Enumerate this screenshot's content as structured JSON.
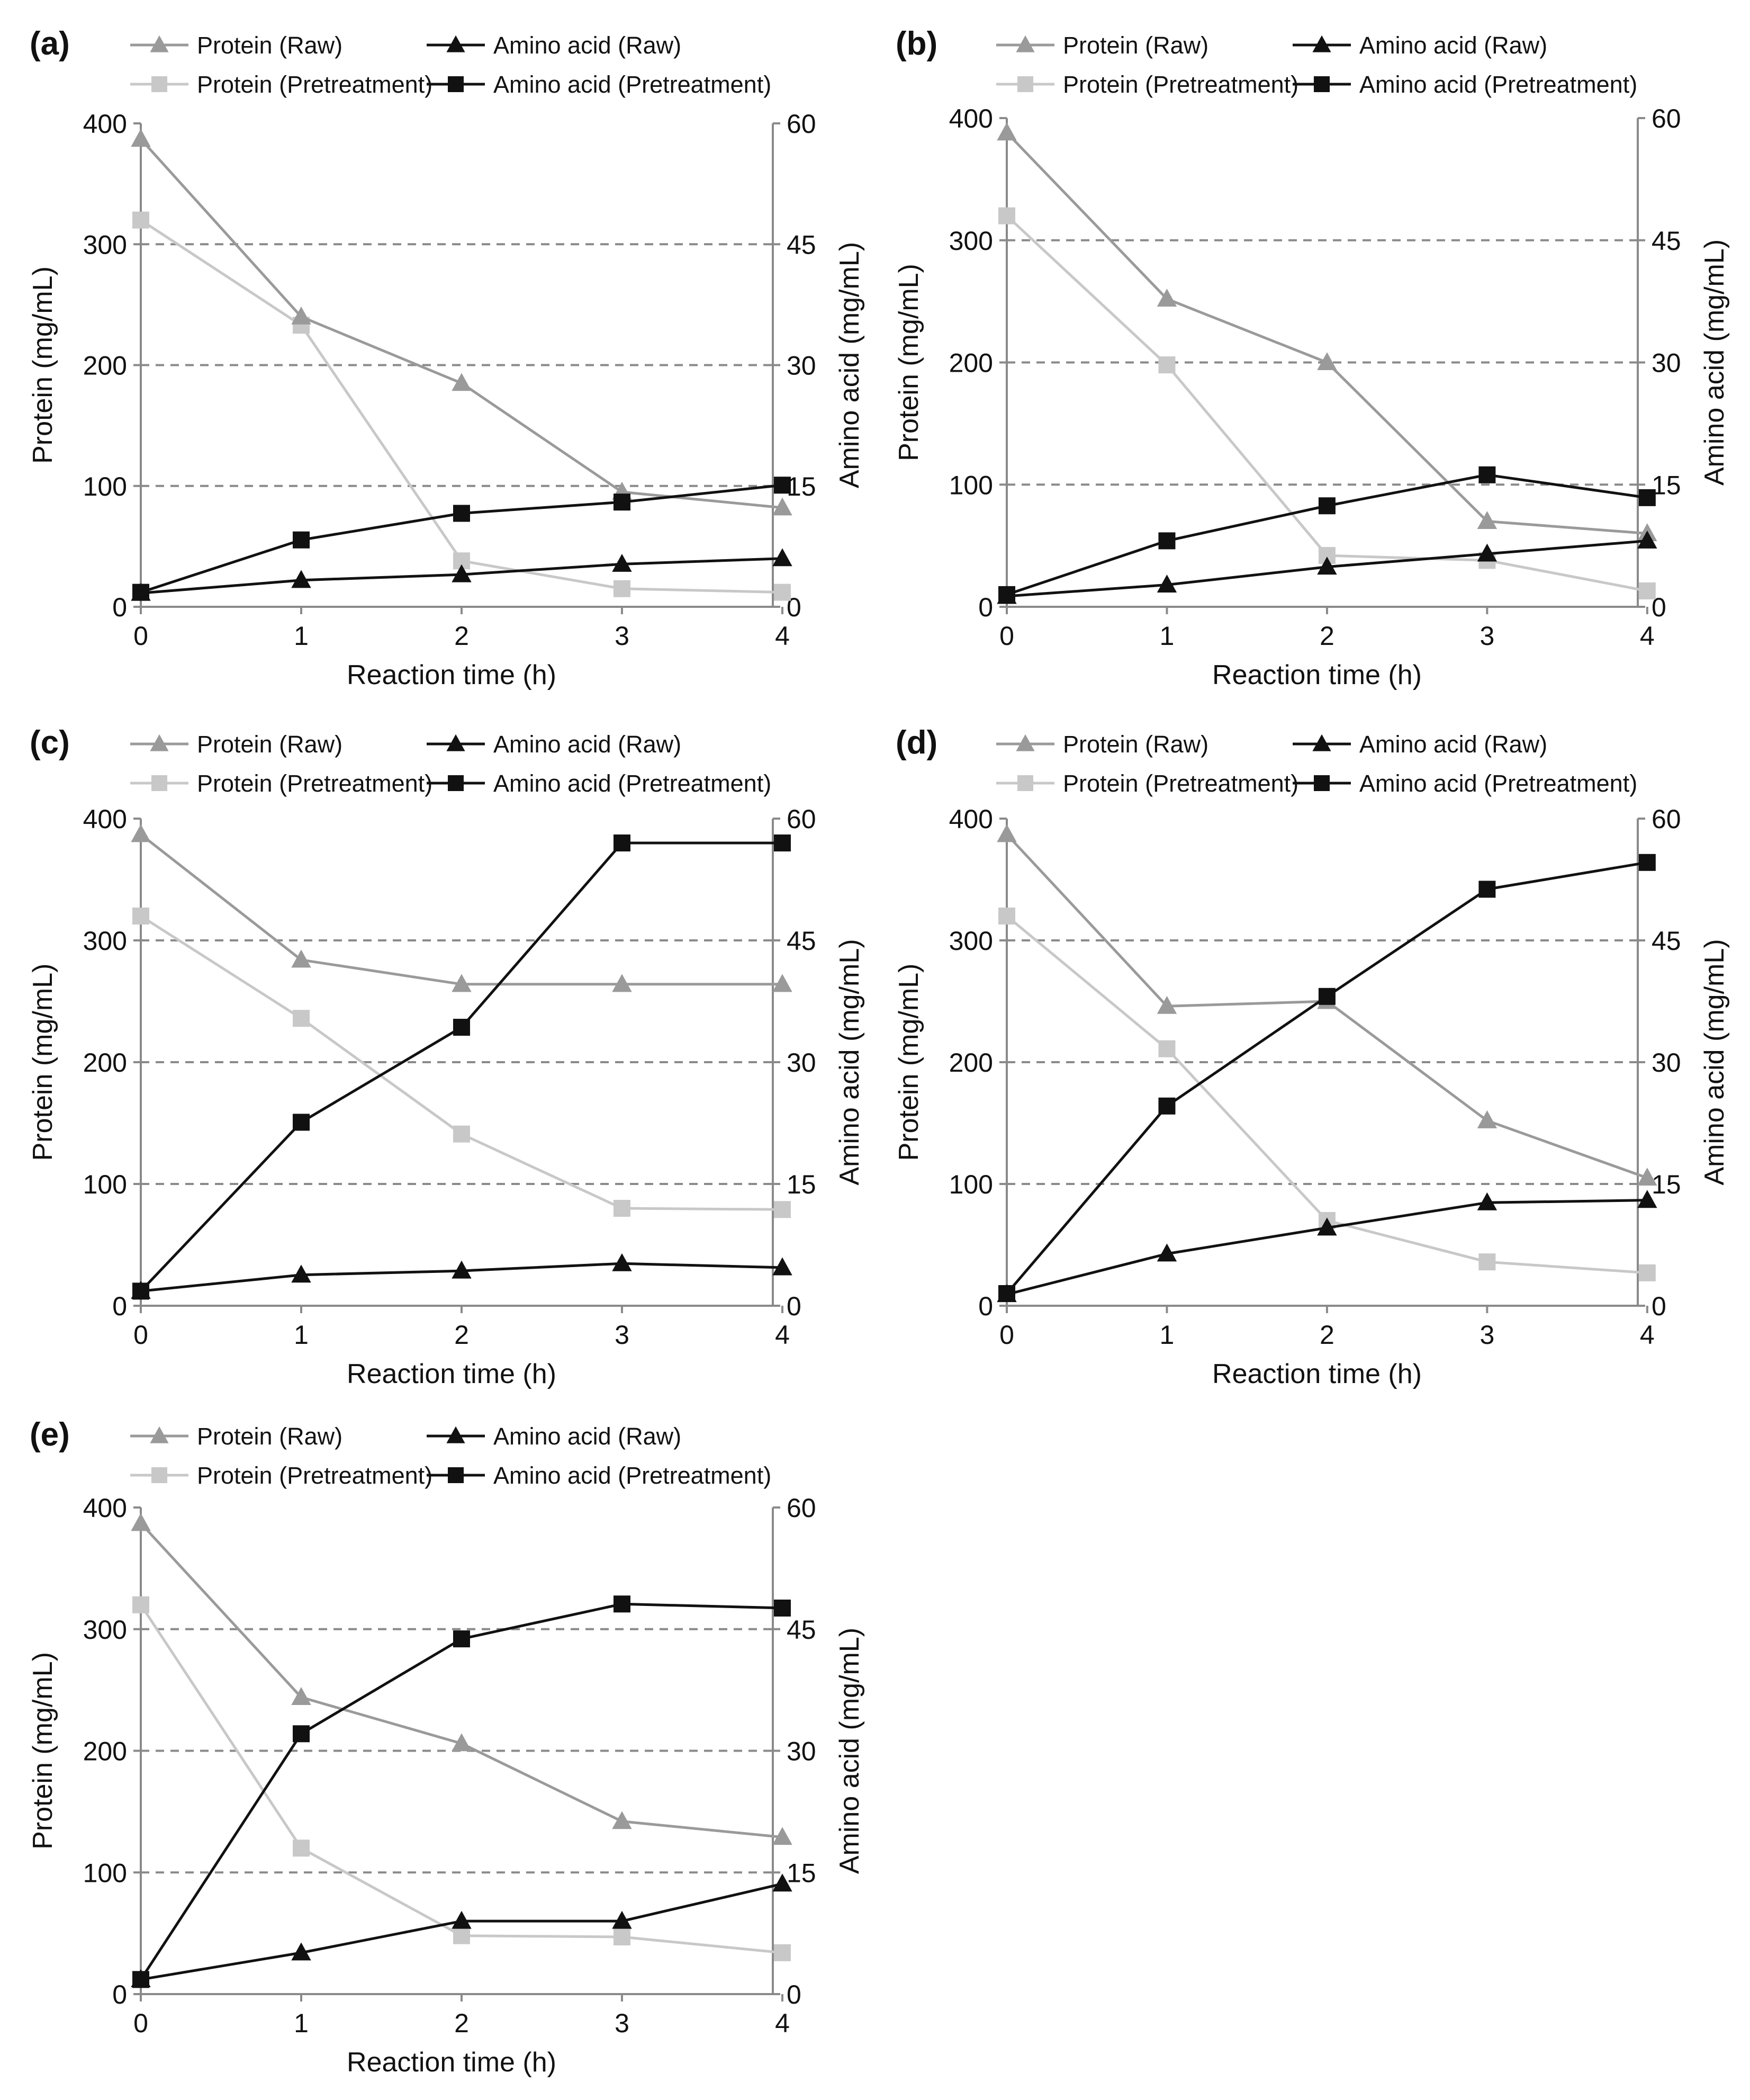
{
  "styles": {
    "protein_raw": {
      "color": "#9a9a9a",
      "marker": "triangle"
    },
    "amino_raw": {
      "color": "#111111",
      "marker": "triangle"
    },
    "protein_pre": {
      "color": "#c8c8c8",
      "marker": "square"
    },
    "amino_pre": {
      "color": "#111111",
      "marker": "square"
    },
    "axis_color": "#8a8a8a",
    "grid_color": "#8a8a8a"
  },
  "chart_data": [
    {
      "panel_label": "(a)",
      "type": "line",
      "x": [
        0,
        1,
        2,
        3,
        4
      ],
      "xlabel": "Reaction time (h)",
      "ylabel": "Protein (mg/mL)",
      "y2label": "Amino acid (mg/mL)",
      "ylim": [
        0,
        400
      ],
      "y2lim": [
        0,
        60
      ],
      "yticks": [
        0,
        100,
        200,
        300,
        400
      ],
      "y2ticks": [
        0,
        15,
        30,
        45,
        60
      ],
      "grid": "dashed at 100, 200, 300",
      "legend_position": "top",
      "series": [
        {
          "name": "Protein (Raw)",
          "style": "protein_raw",
          "axis": "left",
          "values": [
            387,
            240,
            185,
            95,
            82
          ]
        },
        {
          "name": "Amino acid (Raw)",
          "style": "amino_raw",
          "axis": "right",
          "values": [
            1.7,
            3.3,
            4.0,
            5.3,
            6.0
          ]
        },
        {
          "name": "Protein (Pretreatment)",
          "style": "protein_pre",
          "axis": "left",
          "values": [
            320,
            233,
            38,
            15,
            12
          ]
        },
        {
          "name": "Amino acid (Pretreatment)",
          "style": "amino_pre",
          "axis": "right",
          "values": [
            1.8,
            8.3,
            11.6,
            13.0,
            15.1
          ]
        }
      ]
    },
    {
      "panel_label": "(b)",
      "type": "line",
      "x": [
        0,
        1,
        2,
        3,
        4
      ],
      "xlabel": "Reaction time (h)",
      "ylabel": "Protein (mg/mL)",
      "y2label": "Amino acid (mg/mL)",
      "ylim": [
        0,
        400
      ],
      "y2lim": [
        0,
        60
      ],
      "yticks": [
        0,
        100,
        200,
        300,
        400
      ],
      "y2ticks": [
        0,
        15,
        30,
        45,
        60
      ],
      "grid": "dashed at 100, 200, 300",
      "legend_position": "top",
      "series": [
        {
          "name": "Protein (Raw)",
          "style": "protein_raw",
          "axis": "left",
          "values": [
            388,
            252,
            200,
            70,
            60
          ]
        },
        {
          "name": "Amino acid (Raw)",
          "style": "amino_raw",
          "axis": "right",
          "values": [
            1.3,
            2.7,
            4.9,
            6.5,
            8.1
          ]
        },
        {
          "name": "Protein (Pretreatment)",
          "style": "protein_pre",
          "axis": "left",
          "values": [
            320,
            198,
            42,
            38,
            13
          ]
        },
        {
          "name": "Amino acid (Pretreatment)",
          "style": "amino_pre",
          "axis": "right",
          "values": [
            1.5,
            8.1,
            12.4,
            16.2,
            13.4
          ]
        }
      ]
    },
    {
      "panel_label": "(c)",
      "type": "line",
      "x": [
        0,
        1,
        2,
        3,
        4
      ],
      "xlabel": "Reaction time (h)",
      "ylabel": "Protein (mg/mL)",
      "y2label": "Amino acid (mg/mL)",
      "ylim": [
        0,
        400
      ],
      "y2lim": [
        0,
        60
      ],
      "yticks": [
        0,
        100,
        200,
        300,
        400
      ],
      "y2ticks": [
        0,
        15,
        30,
        45,
        60
      ],
      "grid": "dashed at 100, 200, 300",
      "legend_position": "top",
      "series": [
        {
          "name": "Protein (Raw)",
          "style": "protein_raw",
          "axis": "left",
          "values": [
            387,
            284,
            264,
            264,
            264
          ]
        },
        {
          "name": "Amino acid (Raw)",
          "style": "amino_raw",
          "axis": "right",
          "values": [
            1.8,
            3.8,
            4.3,
            5.2,
            4.7
          ]
        },
        {
          "name": "Protein (Pretreatment)",
          "style": "protein_pre",
          "axis": "left",
          "values": [
            320,
            236,
            141,
            80,
            79
          ]
        },
        {
          "name": "Amino acid (Pretreatment)",
          "style": "amino_pre",
          "axis": "right",
          "values": [
            1.8,
            22.6,
            34.3,
            57.0,
            57.0
          ]
        }
      ]
    },
    {
      "panel_label": "(d)",
      "type": "line",
      "x": [
        0,
        1,
        2,
        3,
        4
      ],
      "xlabel": "Reaction time (h)",
      "ylabel": "Protein (mg/mL)",
      "y2label": "Amino acid (mg/mL)",
      "ylim": [
        0,
        400
      ],
      "y2lim": [
        0,
        60
      ],
      "yticks": [
        0,
        100,
        200,
        300,
        400
      ],
      "y2ticks": [
        0,
        15,
        30,
        45,
        60
      ],
      "grid": "dashed at 100, 200, 300",
      "legend_position": "top",
      "series": [
        {
          "name": "Protein (Raw)",
          "style": "protein_raw",
          "axis": "left",
          "values": [
            387,
            246,
            250,
            152,
            105
          ]
        },
        {
          "name": "Amino acid (Raw)",
          "style": "amino_raw",
          "axis": "right",
          "values": [
            1.4,
            6.4,
            9.6,
            12.7,
            13.0
          ]
        },
        {
          "name": "Protein (Pretreatment)",
          "style": "protein_pre",
          "axis": "left",
          "values": [
            320,
            211,
            70,
            36,
            27
          ]
        },
        {
          "name": "Amino acid (Pretreatment)",
          "style": "amino_pre",
          "axis": "right",
          "values": [
            1.5,
            24.6,
            38.1,
            51.3,
            54.6
          ]
        }
      ]
    },
    {
      "panel_label": "(e)",
      "type": "line",
      "x": [
        0,
        1,
        2,
        3,
        4
      ],
      "xlabel": "Reaction time (h)",
      "ylabel": "Protein (mg/mL)",
      "y2label": "Amino acid (mg/mL)",
      "ylim": [
        0,
        400
      ],
      "y2lim": [
        0,
        60
      ],
      "yticks": [
        0,
        100,
        200,
        300,
        400
      ],
      "y2ticks": [
        0,
        15,
        30,
        45,
        60
      ],
      "grid": "dashed at 100, 200, 300",
      "legend_position": "top",
      "series": [
        {
          "name": "Protein (Raw)",
          "style": "protein_raw",
          "axis": "left",
          "values": [
            387,
            244,
            206,
            142,
            129
          ]
        },
        {
          "name": "Amino acid (Raw)",
          "style": "amino_raw",
          "axis": "right",
          "values": [
            1.8,
            5.1,
            9.0,
            9.0,
            13.6
          ]
        },
        {
          "name": "Protein (Pretreatment)",
          "style": "protein_pre",
          "axis": "left",
          "values": [
            320,
            120,
            48,
            47,
            34
          ]
        },
        {
          "name": "Amino acid (Pretreatment)",
          "style": "amino_pre",
          "axis": "right",
          "values": [
            1.8,
            32.1,
            43.8,
            48.1,
            47.6
          ]
        }
      ]
    }
  ]
}
